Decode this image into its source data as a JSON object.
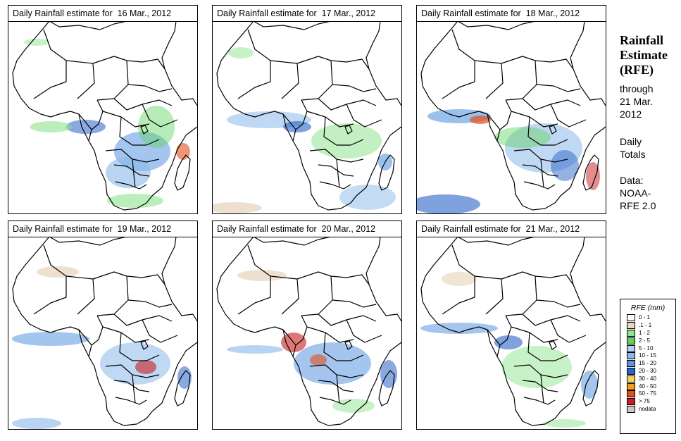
{
  "panels": [
    {
      "title": "Daily Rainfall estimate for  16 Mar., 2012"
    },
    {
      "title": "Daily Rainfall estimate for  17 Mar., 2012"
    },
    {
      "title": "Daily Rainfall estimate for  18 Mar., 2012"
    },
    {
      "title": "Daily Rainfall estimate for  19 Mar., 2012"
    },
    {
      "title": "Daily Rainfall estimate for  20 Mar., 2012"
    },
    {
      "title": "Daily Rainfall estimate for  21 Mar., 2012"
    }
  ],
  "side": {
    "heading_line1": "Rainfall",
    "heading_line2": "Estimate",
    "heading_line3": "(RFE)",
    "through": "through",
    "date_line1": "21 Mar.",
    "date_line2": "2012",
    "daily1": "Daily",
    "daily2": "Totals",
    "data_label": "Data:",
    "source1": "NOAA-",
    "source2": "RFE 2.0"
  },
  "legend": {
    "title": "RFE (mm)",
    "items": [
      {
        "label": "0 - 1",
        "color": "#ffffff"
      },
      {
        "label": ".1 - 1",
        "color": "#ead8c3"
      },
      {
        "label": "1 - 2",
        "color": "#8fe38f"
      },
      {
        "label": "2 - 5",
        "color": "#5fd35f"
      },
      {
        "label": "5 - 10",
        "color": "#b5d3f2"
      },
      {
        "label": "10 - 15",
        "color": "#8ab8ea"
      },
      {
        "label": "15 - 20",
        "color": "#5a96e0"
      },
      {
        "label": "20 - 30",
        "color": "#2a63c8"
      },
      {
        "label": "30 - 40",
        "color": "#f5d25a"
      },
      {
        "label": "40 - 50",
        "color": "#f0a020"
      },
      {
        "label": "50 - 75",
        "color": "#e0501e"
      },
      {
        "label": "> 75",
        "color": "#c81e1e"
      },
      {
        "label": "nodata",
        "color": "#c8c8c8"
      }
    ]
  }
}
